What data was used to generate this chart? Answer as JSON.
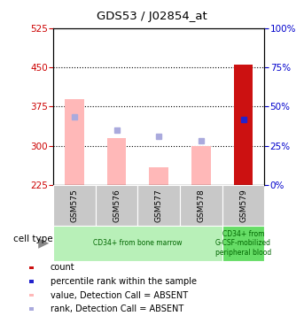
{
  "title": "GDS53 / J02854_at",
  "samples": [
    "GSM575",
    "GSM576",
    "GSM577",
    "GSM578",
    "GSM579"
  ],
  "ylim_left": [
    225,
    525
  ],
  "ylim_right": [
    0,
    100
  ],
  "yticks_left": [
    225,
    300,
    375,
    450,
    525
  ],
  "yticks_right": [
    0,
    25,
    50,
    75,
    100
  ],
  "bar_values": [
    390,
    315,
    258,
    300,
    455
  ],
  "bar_colors": [
    "#ffb8b8",
    "#ffb8b8",
    "#ffb8b8",
    "#ffb8b8",
    "#cc1111"
  ],
  "bar_bottom": 225,
  "rank_squares_y": [
    355,
    330,
    318,
    310,
    350
  ],
  "rank_colors": [
    "#aaaadd",
    "#aaaadd",
    "#aaaadd",
    "#aaaadd",
    "#2222cc"
  ],
  "dotted_lines": [
    300,
    375,
    450
  ],
  "cell_type_groups": [
    {
      "label": "CD34+ from bone marrow",
      "samples": [
        0,
        1,
        2,
        3
      ],
      "color": "#b8f0b8"
    },
    {
      "label": "CD34+ from\nG-CSF-mobilized\nperipheral blood",
      "samples": [
        4
      ],
      "color": "#66dd66"
    }
  ],
  "legend_items": [
    {
      "label": "count",
      "color": "#cc1111"
    },
    {
      "label": "percentile rank within the sample",
      "color": "#2222cc"
    },
    {
      "label": "value, Detection Call = ABSENT",
      "color": "#ffb8b8"
    },
    {
      "label": "rank, Detection Call = ABSENT",
      "color": "#aaaadd"
    }
  ],
  "cell_type_label": "cell type",
  "axis_color_left": "#cc0000",
  "axis_color_right": "#0000cc",
  "bar_width": 0.45
}
